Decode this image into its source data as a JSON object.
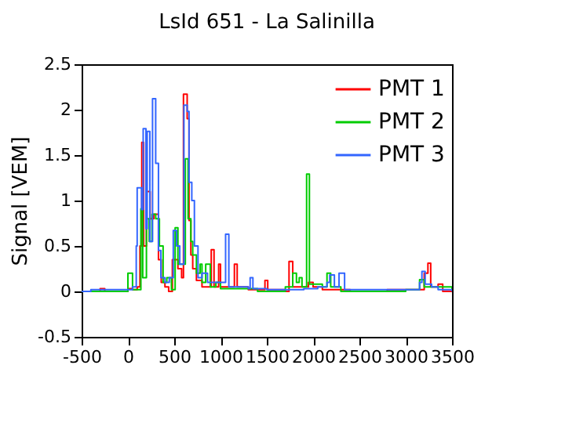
{
  "chart_data": {
    "type": "step",
    "title": "LsId 651 - La Salinilla",
    "ylabel": "Signal [VEM]",
    "xlim": [
      -500,
      3500
    ],
    "xticks": [
      -500,
      0,
      500,
      1000,
      1500,
      2000,
      2500,
      3000,
      3500
    ],
    "ylim": [
      -0.5,
      2.5
    ],
    "yticks": [
      -0.5,
      0,
      0.5,
      1,
      1.5,
      2,
      2.5
    ],
    "grid": false,
    "legend": "top right",
    "series": [
      {
        "name": "PMT 1",
        "color": "#ff0000",
        "x": [
          -500,
          -300,
          -250,
          0,
          50,
          100,
          130,
          150,
          170,
          200,
          240,
          280,
          330,
          360,
          400,
          440,
          480,
          540,
          580,
          600,
          640,
          660,
          680,
          700,
          740,
          800,
          860,
          900,
          930,
          980,
          1000,
          1150,
          1180,
          1300,
          1450,
          1480,
          1510,
          1600,
          1700,
          1740,
          1780,
          1950,
          2000,
          2100,
          2400,
          2800,
          3100,
          3200,
          3240,
          3270,
          3350,
          3400,
          3500
        ],
        "values": [
          0,
          0.03,
          0,
          0.03,
          0.02,
          0.05,
          0.5,
          1.64,
          0.5,
          1.1,
          0.8,
          0.85,
          0.35,
          0.1,
          0.05,
          0,
          0.35,
          0.25,
          0.15,
          2.17,
          1.9,
          0.78,
          0.4,
          0.25,
          0.12,
          0.05,
          0.05,
          0.46,
          0.05,
          0.3,
          0.05,
          0.3,
          0.05,
          0.02,
          0.02,
          0.12,
          0.02,
          0.02,
          0,
          0.33,
          0.05,
          0.1,
          0.05,
          0.02,
          0,
          0.02,
          0.02,
          0.2,
          0.31,
          0.05,
          0.08,
          0,
          0
        ]
      },
      {
        "name": "PMT 2",
        "color": "#00cc00",
        "x": [
          -500,
          -100,
          0,
          50,
          100,
          140,
          160,
          200,
          230,
          260,
          300,
          340,
          380,
          420,
          470,
          510,
          540,
          580,
          620,
          650,
          680,
          700,
          740,
          780,
          800,
          840,
          890,
          950,
          1000,
          1200,
          1400,
          1700,
          1780,
          1820,
          1850,
          1880,
          1930,
          1960,
          2100,
          2150,
          2190,
          2300,
          2700,
          3000,
          3150,
          3200,
          3500
        ],
        "values": [
          0,
          0,
          0.2,
          0.02,
          0.02,
          0.91,
          0.15,
          0.8,
          0.55,
          0.85,
          0.8,
          0.5,
          0.1,
          0.15,
          0.02,
          0.7,
          0.3,
          0.3,
          1.46,
          0.8,
          0.55,
          0.4,
          0.2,
          0.3,
          0.1,
          0.3,
          0.05,
          0.1,
          0.03,
          0.03,
          0,
          0.05,
          0.2,
          0.1,
          0.15,
          0.05,
          1.29,
          0.08,
          0.05,
          0.2,
          0.05,
          0,
          0,
          0.02,
          0.13,
          0.05,
          0
        ]
      },
      {
        "name": "PMT 3",
        "color": "#3366ff",
        "x": [
          -500,
          -400,
          0,
          50,
          90,
          100,
          147,
          165,
          195,
          208,
          237,
          266,
          300,
          330,
          356,
          400,
          447,
          490,
          526,
          560,
          605,
          640,
          660,
          690,
          718,
          757,
          800,
          860,
          920,
          1055,
          1090,
          1300,
          1320,
          1350,
          1500,
          1900,
          2050,
          2150,
          2180,
          2230,
          2280,
          2340,
          2500,
          3150,
          3175,
          3210,
          3280,
          3350,
          3500
        ],
        "values": [
          0,
          0.02,
          0.02,
          0.05,
          0.5,
          1.14,
          0.9,
          1.79,
          0.69,
          1.76,
          0.55,
          2.12,
          1.41,
          0.45,
          0.15,
          0.1,
          0.15,
          0.67,
          0.5,
          0.3,
          2.05,
          1.98,
          1.2,
          1.0,
          0.5,
          0.15,
          0.2,
          0.1,
          0.1,
          0.63,
          0.05,
          0.03,
          0.15,
          0.03,
          0.02,
          0.03,
          0.05,
          0.1,
          0.18,
          0.05,
          0.2,
          0.02,
          0.02,
          0.1,
          0.22,
          0.08,
          0.05,
          0.02,
          0
        ]
      }
    ]
  }
}
